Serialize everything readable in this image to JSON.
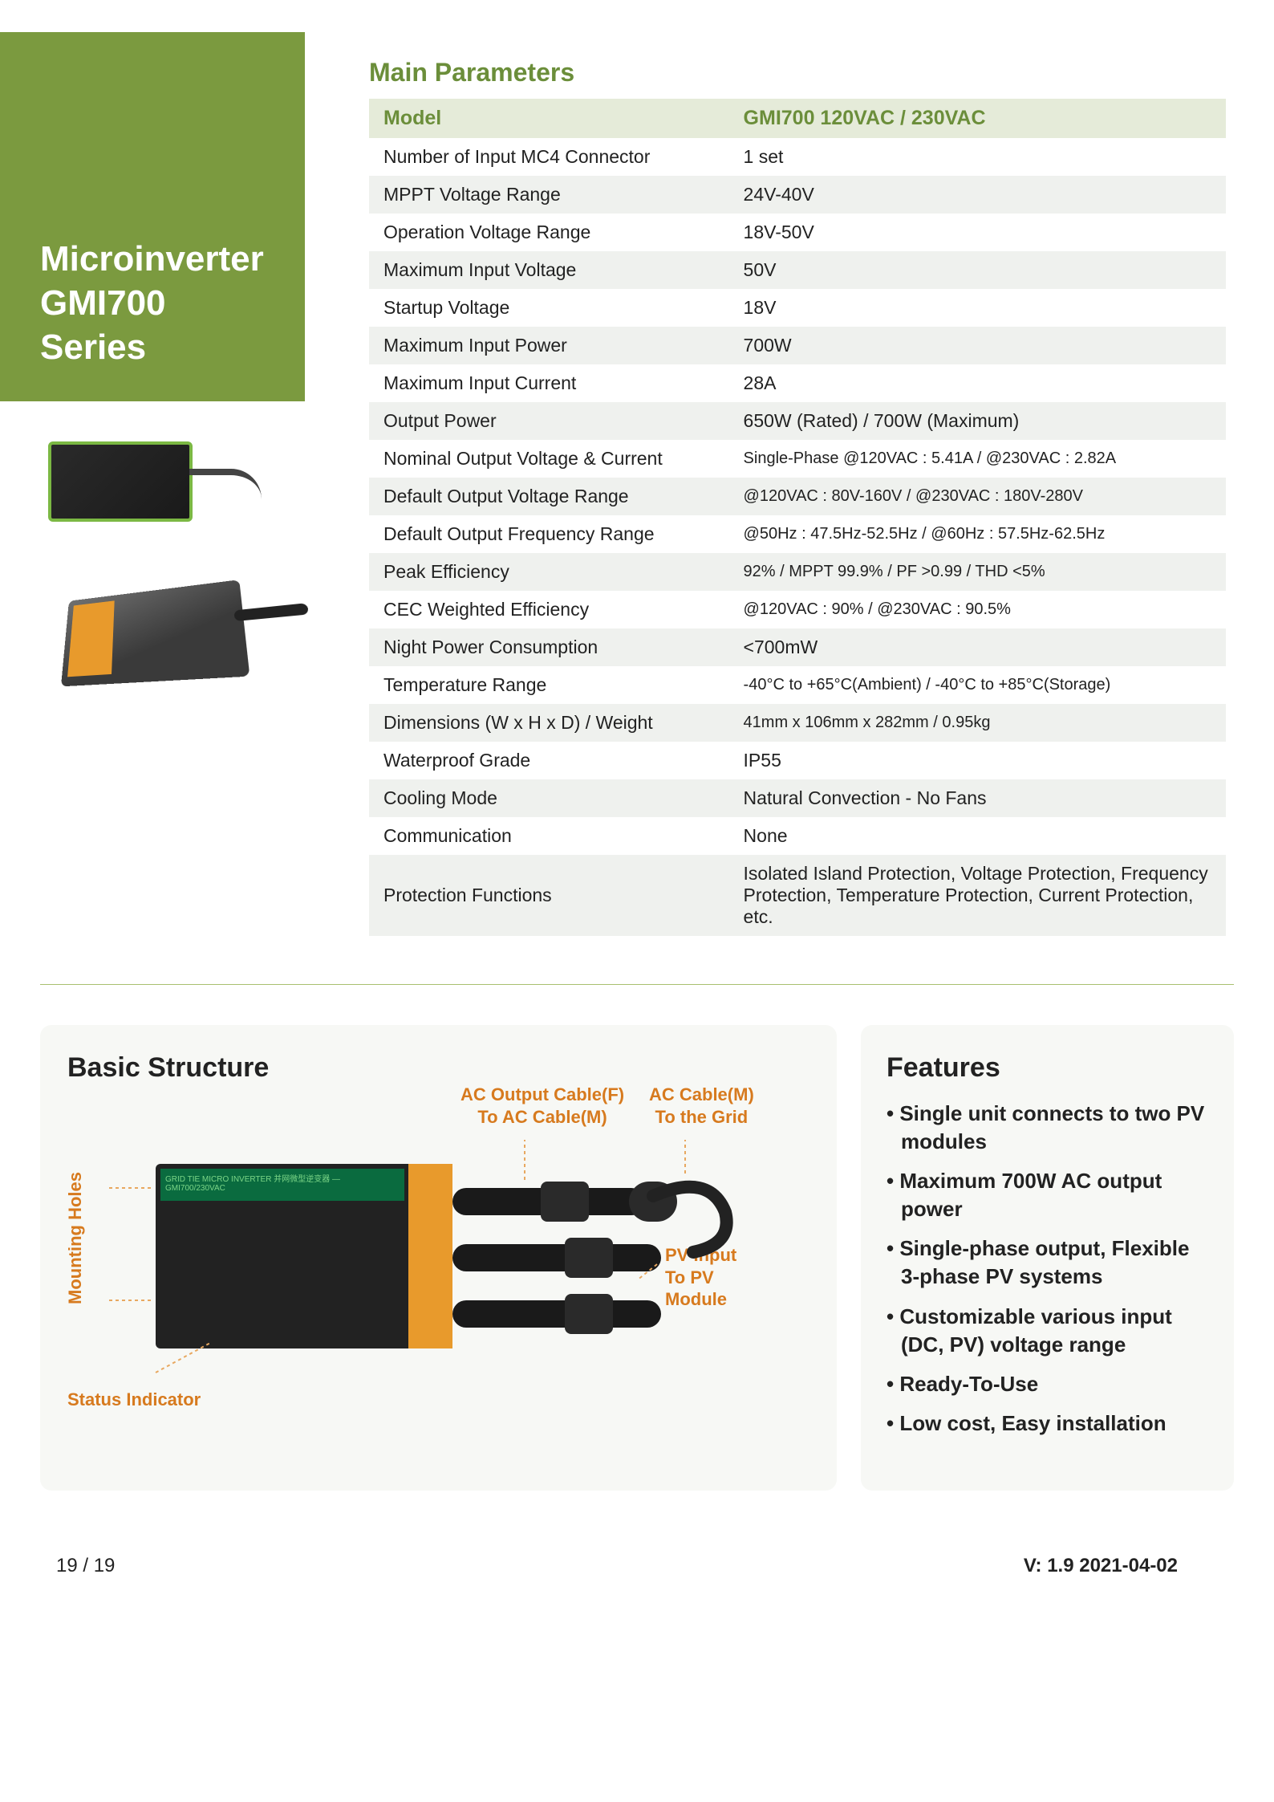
{
  "colors": {
    "accent_green": "#7b9a3f",
    "text_green": "#6b8e3a",
    "row_odd": "#eff1ee",
    "row_header": "#e5ebd9",
    "panel_bg": "#f7f8f5",
    "label_orange": "#d77a1e",
    "device_orange": "#e89a2c",
    "device_green_strip": "#0a6b3f"
  },
  "sidebar": {
    "title_line1": "Microinverter",
    "title_line2": "GMI700 Series"
  },
  "params": {
    "title": "Main Parameters",
    "header_label": "Model",
    "header_value": "GMI700 120VAC / 230VAC",
    "rows": [
      {
        "label": "Number of Input MC4 Connector",
        "value": "1 set"
      },
      {
        "label": "MPPT Voltage Range",
        "value": "24V-40V"
      },
      {
        "label": "Operation Voltage Range",
        "value": "18V-50V"
      },
      {
        "label": "Maximum Input Voltage",
        "value": "50V"
      },
      {
        "label": "Startup Voltage",
        "value": "18V"
      },
      {
        "label": "Maximum Input Power",
        "value": "700W"
      },
      {
        "label": "Maximum Input Current",
        "value": "28A"
      },
      {
        "label": "Output Power",
        "value": "650W (Rated) / 700W (Maximum)"
      },
      {
        "label": "Nominal Output Voltage & Current",
        "value": "Single-Phase  @120VAC : 5.41A  /  @230VAC : 2.82A",
        "small": true
      },
      {
        "label": "Default Output Voltage Range",
        "value": "@120VAC : 80V-160V  /  @230VAC : 180V-280V",
        "small": true
      },
      {
        "label": "Default Output Frequency Range",
        "value": "@50Hz : 47.5Hz-52.5Hz   /  @60Hz : 57.5Hz-62.5Hz",
        "small": true
      },
      {
        "label": "Peak Efficiency",
        "value": "92%  / MPPT 99.9% / PF >0.99 / THD <5%",
        "small": true
      },
      {
        "label": "CEC Weighted Efficiency",
        "value": "@120VAC : 90%  /  @230VAC : 90.5%",
        "small": true
      },
      {
        "label": "Night Power Consumption",
        "value": "<700mW"
      },
      {
        "label": "Temperature Range",
        "value": "-40°C to +65°C(Ambient) / -40°C to +85°C(Storage)",
        "small": true
      },
      {
        "label": "Dimensions (W x H x D) / Weight",
        "value": "41mm x 106mm x 282mm /  0.95kg",
        "small": true
      },
      {
        "label": "Waterproof Grade",
        "value": "IP55"
      },
      {
        "label": "Cooling Mode",
        "value": "Natural Convection - No Fans"
      },
      {
        "label": "Communication",
        "value": "None"
      },
      {
        "label": "Protection Functions",
        "value": "Isolated Island Protection, Voltage Protection, Frequency Protection, Temperature Protection, Current Protection, etc."
      }
    ]
  },
  "structure": {
    "title": "Basic Structure",
    "labels": {
      "mounting": "Mounting Holes",
      "status": "Status Indicator",
      "ac_output_1": "AC Output Cable(F)",
      "ac_output_2": "To AC Cable(M)",
      "ac_cable_1": "AC Cable(M)",
      "ac_cable_2": "To the Grid",
      "pv_input_1": "PV Input",
      "pv_input_2": "To PV",
      "pv_input_3": "Module",
      "device_header": "GRID TIE MICRO INVERTER 并网微型逆变器 — GMI700/230VAC"
    }
  },
  "features": {
    "title": "Features",
    "items": [
      "Single unit connects to two PV modules",
      "Maximum 700W AC output power",
      "Single-phase output, Flexible 3-phase PV systems",
      "Customizable various input (DC, PV) voltage range",
      "Ready-To-Use",
      "Low cost, Easy installation"
    ]
  },
  "footer": {
    "page": "19 / 19",
    "version": "V: 1.9  2021-04-02"
  }
}
